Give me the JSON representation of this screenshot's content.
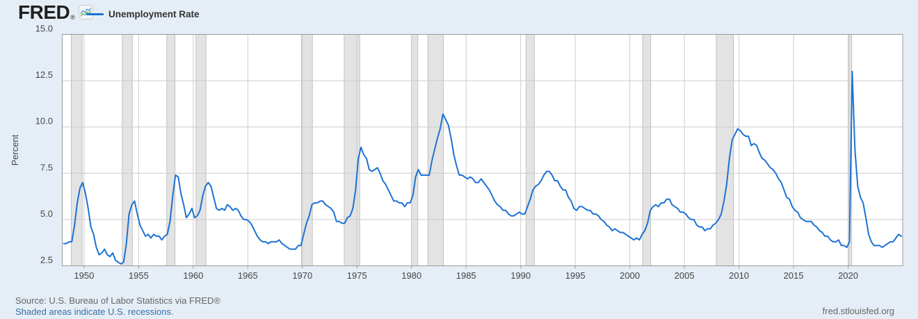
{
  "header": {
    "logo_text": "FRED",
    "registered_mark": "®",
    "legend": {
      "series_label": "Unemployment Rate"
    }
  },
  "footer": {
    "source_text": "Source: U.S. Bureau of Labor Statistics via FRED®",
    "recession_note": "Shaded areas indicate U.S. recessions.",
    "site_link": "fred.stlouisfed.org"
  },
  "colors": {
    "background": "#e5eef6",
    "plot_background": "#ffffff",
    "grid": "#cccccc",
    "plot_border": "#999999",
    "recession_fill": "#e3e3e3",
    "recession_edge": "#b5b5b5",
    "series": "#1c72d3",
    "axis_text": "#444444",
    "source_text": "#666666",
    "link_text": "#3a6ea5"
  },
  "chart_data": {
    "type": "line",
    "title": "Unemployment Rate",
    "xlabel": "",
    "ylabel": "Percent",
    "frequency": "quarterly",
    "x_domain": [
      1948,
      2025
    ],
    "y_domain": [
      2.5,
      15.0
    ],
    "y_ticks": [
      2.5,
      5.0,
      7.5,
      10.0,
      12.5,
      15.0
    ],
    "x_ticks": [
      1950,
      1955,
      1960,
      1965,
      1970,
      1975,
      1980,
      1985,
      1990,
      1995,
      2000,
      2005,
      2010,
      2015,
      2020
    ],
    "grid": true,
    "legend_position": "top-left",
    "x_start": 1948.125,
    "x_step": 0.25,
    "values": [
      3.7,
      3.7,
      3.8,
      3.8,
      4.7,
      5.9,
      6.7,
      7.0,
      6.4,
      5.6,
      4.6,
      4.2,
      3.5,
      3.1,
      3.2,
      3.4,
      3.1,
      3.0,
      3.2,
      2.8,
      2.7,
      2.6,
      2.7,
      3.7,
      5.3,
      5.8,
      6.0,
      5.3,
      4.7,
      4.4,
      4.1,
      4.2,
      4.0,
      4.2,
      4.1,
      4.1,
      3.9,
      4.1,
      4.2,
      4.9,
      6.3,
      7.4,
      7.3,
      6.4,
      5.8,
      5.1,
      5.3,
      5.6,
      5.1,
      5.2,
      5.5,
      6.3,
      6.8,
      7.0,
      6.8,
      6.2,
      5.6,
      5.5,
      5.6,
      5.5,
      5.8,
      5.7,
      5.5,
      5.6,
      5.5,
      5.2,
      5.0,
      5.0,
      4.9,
      4.7,
      4.4,
      4.1,
      3.9,
      3.8,
      3.8,
      3.7,
      3.8,
      3.8,
      3.8,
      3.9,
      3.7,
      3.6,
      3.5,
      3.4,
      3.4,
      3.4,
      3.6,
      3.6,
      4.2,
      4.8,
      5.2,
      5.8,
      5.9,
      5.9,
      6.0,
      6.0,
      5.8,
      5.7,
      5.6,
      5.4,
      4.9,
      4.9,
      4.8,
      4.8,
      5.1,
      5.2,
      5.6,
      6.6,
      8.3,
      8.9,
      8.5,
      8.3,
      7.7,
      7.6,
      7.7,
      7.8,
      7.5,
      7.1,
      6.9,
      6.6,
      6.3,
      6.0,
      6.0,
      5.9,
      5.9,
      5.7,
      5.9,
      5.9,
      6.3,
      7.3,
      7.7,
      7.4,
      7.4,
      7.4,
      7.4,
      8.2,
      8.8,
      9.4,
      9.9,
      10.7,
      10.4,
      10.1,
      9.4,
      8.5,
      7.9,
      7.4,
      7.4,
      7.3,
      7.2,
      7.3,
      7.2,
      7.0,
      7.0,
      7.2,
      7.0,
      6.8,
      6.6,
      6.3,
      6.0,
      5.8,
      5.7,
      5.5,
      5.5,
      5.3,
      5.2,
      5.2,
      5.3,
      5.4,
      5.3,
      5.3,
      5.7,
      6.1,
      6.6,
      6.8,
      6.9,
      7.1,
      7.4,
      7.6,
      7.6,
      7.4,
      7.1,
      7.1,
      6.8,
      6.6,
      6.6,
      6.2,
      6.0,
      5.6,
      5.5,
      5.7,
      5.7,
      5.6,
      5.5,
      5.5,
      5.3,
      5.3,
      5.2,
      5.0,
      4.9,
      4.7,
      4.6,
      4.4,
      4.5,
      4.4,
      4.3,
      4.3,
      4.2,
      4.1,
      4.0,
      3.9,
      4.0,
      3.9,
      4.2,
      4.4,
      4.8,
      5.5,
      5.7,
      5.8,
      5.7,
      5.9,
      5.9,
      6.1,
      6.1,
      5.8,
      5.7,
      5.6,
      5.4,
      5.4,
      5.3,
      5.1,
      5.0,
      5.0,
      4.7,
      4.6,
      4.6,
      4.4,
      4.5,
      4.5,
      4.7,
      4.8,
      5.0,
      5.3,
      6.0,
      6.9,
      8.3,
      9.3,
      9.6,
      9.9,
      9.8,
      9.6,
      9.5,
      9.5,
      9.0,
      9.1,
      9.0,
      8.6,
      8.3,
      8.2,
      8.0,
      7.8,
      7.7,
      7.5,
      7.2,
      7.0,
      6.6,
      6.2,
      6.1,
      5.7,
      5.5,
      5.4,
      5.1,
      5.0,
      4.9,
      4.9,
      4.9,
      4.7,
      4.6,
      4.4,
      4.3,
      4.1,
      4.1,
      3.9,
      3.8,
      3.8,
      3.9,
      3.6,
      3.6,
      3.5,
      3.8,
      13.0,
      8.8,
      6.8,
      6.2,
      5.9,
      5.1,
      4.2,
      3.8,
      3.6,
      3.6,
      3.6,
      3.5,
      3.6,
      3.7,
      3.8,
      3.8,
      4.0,
      4.2,
      4.1
    ],
    "recessions": [
      [
        1948.83,
        1949.83
      ],
      [
        1953.5,
        1954.42
      ],
      [
        1957.58,
        1958.33
      ],
      [
        1960.25,
        1961.17
      ],
      [
        1969.92,
        1970.92
      ],
      [
        1973.83,
        1975.25
      ],
      [
        1980.0,
        1980.58
      ],
      [
        1981.5,
        1982.92
      ],
      [
        1990.5,
        1991.25
      ],
      [
        2001.17,
        2001.92
      ],
      [
        2007.92,
        2009.5
      ],
      [
        2020.08,
        2020.33
      ]
    ]
  }
}
